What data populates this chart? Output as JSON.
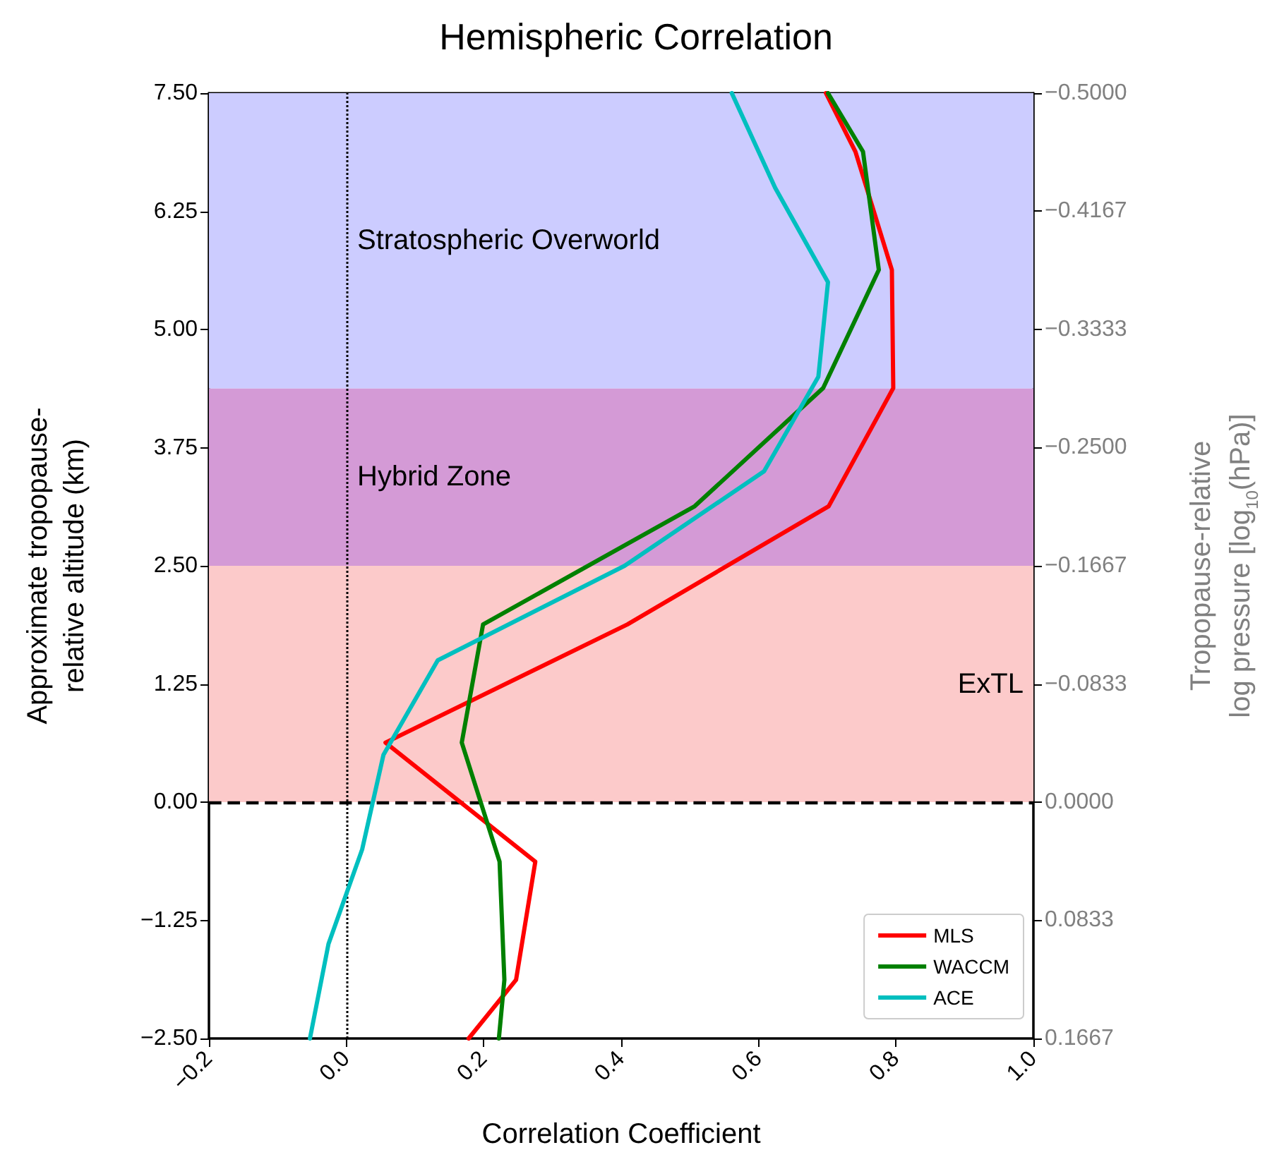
{
  "chart_data": {
    "type": "line",
    "title": "Hemispheric Correlation",
    "xlabel": "Correlation Coefficient",
    "ylabel": "Approximate tropopause-\nrelative altitude (km)",
    "y2label": "Tropopause-relative\nlog pressure [log$_{10}$(hPa)]",
    "series": [
      {
        "name": "MLS",
        "color": "#ff0000",
        "x": [
          0.698,
          0.741,
          0.794,
          0.796,
          0.702,
          0.409,
          0.057,
          0.275,
          0.247,
          0.178
        ],
        "values": [
          7.5,
          6.88,
          5.63,
          4.38,
          3.13,
          1.88,
          0.63,
          -0.63,
          -1.88,
          -2.5
        ]
      },
      {
        "name": "WACCM",
        "color": "#008000",
        "x": [
          0.701,
          0.752,
          0.775,
          0.694,
          0.507,
          0.199,
          0.168,
          0.223,
          0.23,
          0.222
        ],
        "values": [
          7.5,
          6.88,
          5.63,
          4.38,
          3.13,
          1.88,
          0.63,
          -0.63,
          -1.88,
          -2.5
        ]
      },
      {
        "name": "ACE",
        "color": "#00bfbf",
        "x": [
          0.561,
          0.624,
          0.701,
          0.687,
          0.608,
          0.405,
          0.133,
          0.054,
          0.023,
          -0.026,
          -0.053
        ],
        "values": [
          7.5,
          6.5,
          5.5,
          4.5,
          3.5,
          2.5,
          1.5,
          0.5,
          -0.5,
          -1.5,
          -2.5
        ]
      }
    ],
    "xlim": [
      -0.2,
      1.0
    ],
    "xticks": [
      {
        "value": -0.2,
        "label": "−0.2"
      },
      {
        "value": 0,
        "label": "0.0"
      },
      {
        "value": 0.2,
        "label": "0.2"
      },
      {
        "value": 0.4,
        "label": "0.4"
      },
      {
        "value": 0.6,
        "label": "0.6"
      },
      {
        "value": 0.8,
        "label": "0.8"
      },
      {
        "value": 1.0,
        "label": "1.0"
      }
    ],
    "ylim": [
      -2.5,
      7.5
    ],
    "yticks": [
      {
        "value": -2.5,
        "label": "−2.50"
      },
      {
        "value": -1.25,
        "label": "−1.25"
      },
      {
        "value": 0,
        "label": "0.00"
      },
      {
        "value": 1.25,
        "label": "1.25"
      },
      {
        "value": 2.5,
        "label": "2.50"
      },
      {
        "value": 3.75,
        "label": "3.75"
      },
      {
        "value": 5,
        "label": "5.00"
      },
      {
        "value": 6.25,
        "label": "6.25"
      },
      {
        "value": 7.5,
        "label": "7.50"
      }
    ],
    "y2lim": [
      0.1667,
      -0.5
    ],
    "y2ticks": [
      {
        "value": -0.5,
        "label": "−0.5000"
      },
      {
        "value": -0.4167,
        "label": "−0.4167"
      },
      {
        "value": -0.3333,
        "label": "−0.3333"
      },
      {
        "value": -0.25,
        "label": "−0.2500"
      },
      {
        "value": -0.1667,
        "label": "−0.1667"
      },
      {
        "value": -0.0833,
        "label": "−0.0833"
      },
      {
        "value": 0,
        "label": "0.0000"
      },
      {
        "value": 0.0833,
        "label": "0.0833"
      },
      {
        "value": 0.1667,
        "label": "0.1667"
      }
    ],
    "bands": [
      {
        "axis": "y",
        "from": 4.375,
        "to": 7.5,
        "label": "Stratospheric Overworld",
        "color": "#ccccff"
      },
      {
        "axis": "y",
        "from": 2.5,
        "to": 4.375,
        "label": "Hybrid Zone",
        "color": "#d49ad6"
      },
      {
        "axis": "y",
        "from": 0,
        "to": 2.5,
        "label": "ExTL",
        "color": "#fccaca"
      }
    ],
    "ref_lines": [
      {
        "axis": "y",
        "value": 0,
        "color": "#000000",
        "line_style": "dashed"
      },
      {
        "axis": "x",
        "value": 0,
        "color": "#000000",
        "line_style": "dotted"
      }
    ],
    "grid": false,
    "legend": "bottom right",
    "marker": "none",
    "line_style": "solid"
  }
}
